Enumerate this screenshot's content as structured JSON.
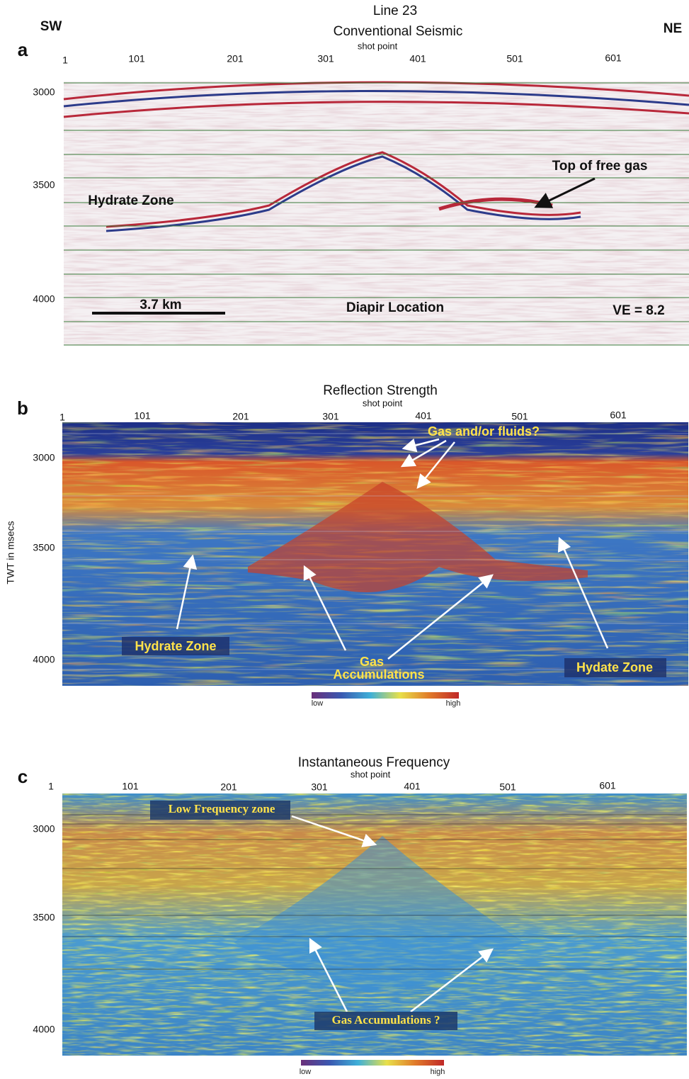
{
  "figure_title": "Line 23",
  "direction_left": "SW",
  "direction_right": "NE",
  "y_axis_label": "TWT in msecs",
  "panels": [
    {
      "label": "a",
      "title": "Conventional Seismic",
      "axis_label": "shot point",
      "shot_points": [
        "1",
        "101",
        "201",
        "301",
        "401",
        "501",
        "601"
      ],
      "twt_labels": [
        "3000",
        "3500",
        "4000"
      ],
      "annotations": [
        "Hydrate Zone",
        "Top of free gas",
        "3.7 km",
        "Diapir Location",
        "VE = 8.2"
      ]
    },
    {
      "label": "b",
      "title": "Reflection Strength",
      "axis_label": "shot point",
      "shot_points": [
        "1",
        "101",
        "201",
        "301",
        "401",
        "501",
        "601"
      ],
      "twt_labels": [
        "3000",
        "3500",
        "4000"
      ],
      "annotations": [
        "Gas and/or fluids?",
        "Hydrate Zone",
        "Gas",
        "Accumulations",
        "Hydate Zone"
      ],
      "colorbar": {
        "low": "low",
        "high": "high"
      }
    },
    {
      "label": "c",
      "title": "Instantaneous Frequency",
      "axis_label": "shot point",
      "shot_points": [
        "1",
        "101",
        "201",
        "301",
        "401",
        "501",
        "601"
      ],
      "twt_labels": [
        "3000",
        "3500",
        "4000"
      ],
      "annotations": [
        "Low Frequency zone",
        "Gas Accumulations ?"
      ],
      "colorbar": {
        "low": "low",
        "high": "high"
      }
    }
  ]
}
